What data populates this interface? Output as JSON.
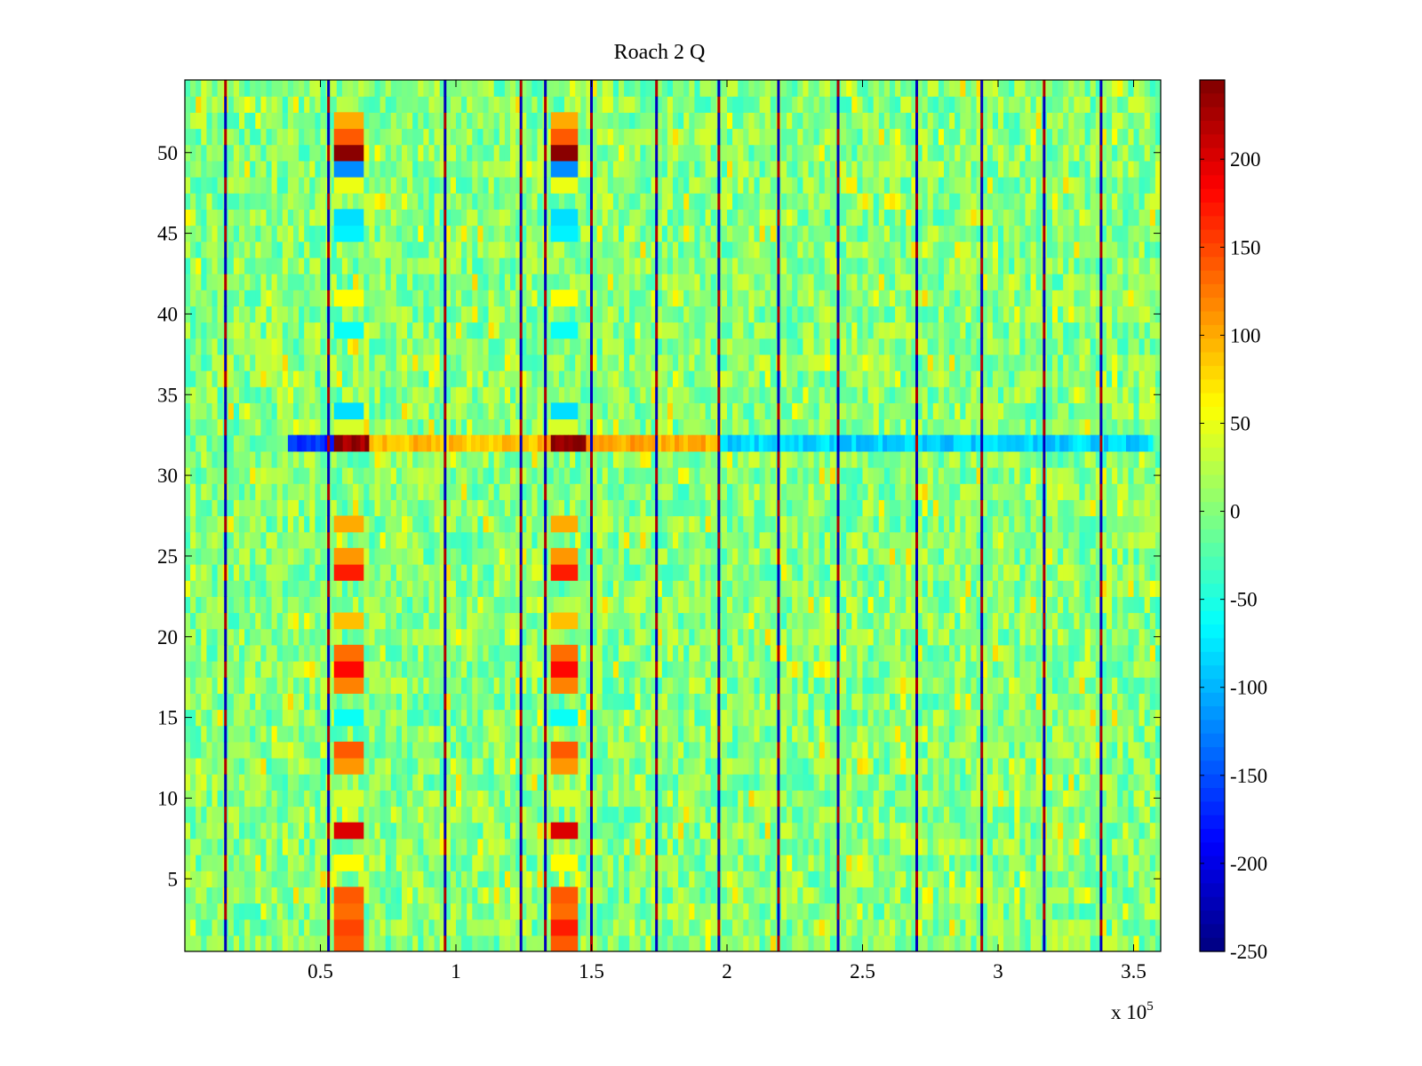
{
  "chart_data": {
    "type": "heatmap",
    "title": "Roach 2 Q",
    "xlabel": "",
    "ylabel": "",
    "x_multiplier_label": {
      "base": "x 10",
      "exponent": "5"
    },
    "xlim": [
      0,
      3.6
    ],
    "ylim": [
      0.5,
      54.5
    ],
    "x_units_scale": 100000,
    "x_ticks": [
      0.5,
      1,
      1.5,
      2,
      2.5,
      3,
      3.5
    ],
    "x_tick_labels": [
      "0.5",
      "1",
      "1.5",
      "2",
      "2.5",
      "3",
      "3.5"
    ],
    "y_ticks": [
      5,
      10,
      15,
      20,
      25,
      30,
      35,
      40,
      45,
      50
    ],
    "y_tick_labels": [
      "5",
      "10",
      "15",
      "20",
      "25",
      "30",
      "35",
      "40",
      "45",
      "50"
    ],
    "rows": 54,
    "colormap": "jet",
    "colorbar": {
      "range": [
        -250,
        245
      ],
      "ticks": [
        200,
        150,
        100,
        50,
        0,
        -50,
        -100,
        -150,
        -200,
        -250
      ],
      "tick_labels": [
        "200",
        "150",
        "100",
        "50",
        "0",
        "-50",
        "-100",
        "-150",
        "-200",
        "-250"
      ]
    },
    "background_value_range": [
      -40,
      40
    ],
    "vertical_stripes_x": [
      0.15,
      0.53,
      0.96,
      1.24,
      1.33,
      1.5,
      1.74,
      1.97,
      2.19,
      2.41,
      2.7,
      2.94,
      3.17,
      3.38
    ],
    "block_columns": [
      {
        "x_range": [
          0.55,
          0.66
        ],
        "row_values": {
          "1": 140,
          "2": 150,
          "3": 130,
          "4": 140,
          "6": 60,
          "8": 200,
          "10": 40,
          "12": 110,
          "13": 140,
          "15": -60,
          "17": 120,
          "18": 180,
          "19": 130,
          "21": 90,
          "24": 170,
          "25": 110,
          "27": 100,
          "33": 40,
          "34": -80,
          "39": -60,
          "41": 60,
          "45": -70,
          "46": -80,
          "48": 50,
          "49": -120,
          "50": 240,
          "51": 140,
          "52": 100
        }
      },
      {
        "x_range": [
          1.35,
          1.45
        ],
        "row_values": {
          "1": 140,
          "2": 170,
          "3": 130,
          "4": 140,
          "6": 60,
          "8": 200,
          "10": 40,
          "12": 110,
          "13": 140,
          "15": -60,
          "17": 120,
          "18": 180,
          "19": 130,
          "21": 90,
          "24": 170,
          "25": 110,
          "27": 100,
          "33": 40,
          "34": -80,
          "39": -60,
          "41": 60,
          "45": -70,
          "46": -80,
          "48": 50,
          "49": -120,
          "50": 240,
          "51": 140,
          "52": 100
        }
      }
    ],
    "row_32_segments": [
      {
        "x_range": [
          0.38,
          0.55
        ],
        "value": -170
      },
      {
        "x_range": [
          0.55,
          0.68
        ],
        "value": 235
      },
      {
        "x_range": [
          0.68,
          1.35
        ],
        "value": 90
      },
      {
        "x_range": [
          1.35,
          1.48
        ],
        "value": 240
      },
      {
        "x_range": [
          1.48,
          1.97
        ],
        "value": 100
      },
      {
        "x_range": [
          1.97,
          3.57
        ],
        "value": -85
      }
    ]
  }
}
